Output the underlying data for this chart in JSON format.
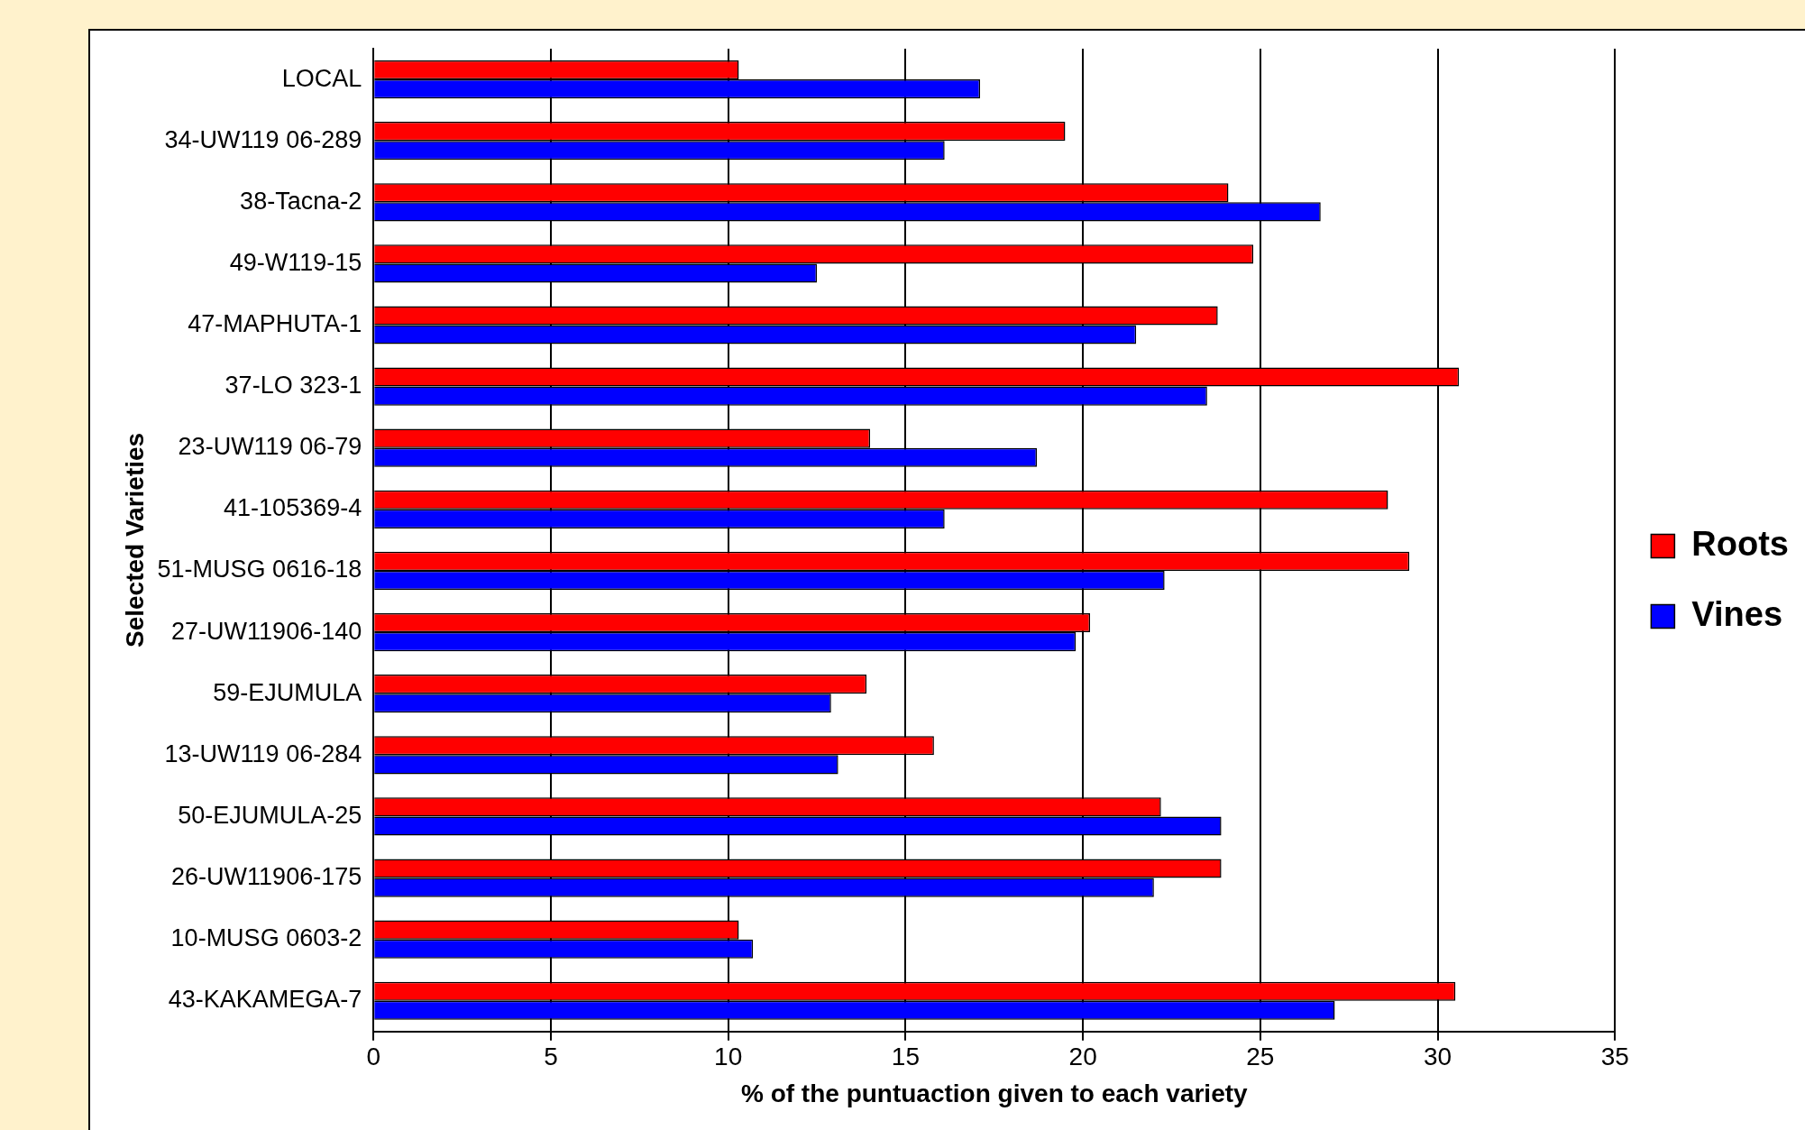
{
  "chart_data": {
    "type": "bar",
    "orientation": "horizontal",
    "xlabel": "% of the puntuaction given to each variety",
    "ylabel": "Selected Varieties",
    "categories": [
      "LOCAL",
      "34-UW119 06-289",
      "38-Tacna-2",
      "49-W119-15",
      "47-MAPHUTA-1",
      "37-LO 323-1",
      "23-UW119 06-79",
      "41-105369-4",
      "51-MUSG 0616-18",
      "27-UW11906-140",
      "59-EJUMULA",
      "13-UW119 06-284",
      "50-EJUMULA-25",
      "26-UW11906-175",
      "10-MUSG 0603-2",
      "43-KAKAMEGA-7"
    ],
    "series": [
      {
        "name": "Roots",
        "color": "#ff0000",
        "values": [
          10.3,
          19.5,
          24.1,
          24.8,
          23.8,
          30.6,
          14.0,
          28.6,
          29.2,
          20.2,
          13.9,
          15.8,
          22.2,
          23.9,
          10.3,
          30.5
        ]
      },
      {
        "name": "Vines",
        "color": "#0000ff",
        "values": [
          17.1,
          16.1,
          26.7,
          12.5,
          21.5,
          23.5,
          18.7,
          16.1,
          22.3,
          19.8,
          12.9,
          13.1,
          23.9,
          22.0,
          10.7,
          27.1
        ]
      }
    ],
    "xlim": [
      0,
      35
    ],
    "xticks": [
      0,
      5,
      10,
      15,
      20,
      25,
      30,
      35
    ],
    "grid": "x",
    "legend": "right"
  }
}
